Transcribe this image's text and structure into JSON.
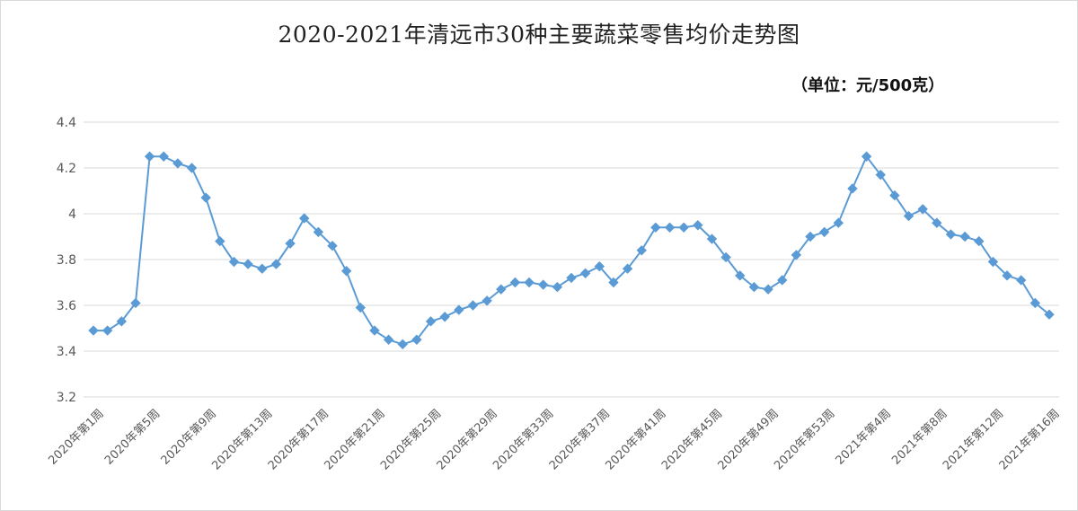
{
  "chart_data": {
    "type": "line",
    "title": "2020-2021年清远市30种主要蔬菜零售均价走势图",
    "unit_note": "（单位：元/500克）",
    "ylim": [
      3.2,
      4.4
    ],
    "yticks": [
      "3.2",
      "3.4",
      "3.6",
      "3.8",
      "4",
      "4.2",
      "4.4"
    ],
    "grid": true,
    "legend": "none",
    "color": "#5b9bd5",
    "categories": [
      "2020年第1周",
      "2020年第2周",
      "2020年第3周",
      "2020年第4周",
      "2020年第5周",
      "2020年第6周",
      "2020年第7周",
      "2020年第8周",
      "2020年第9周",
      "2020年第10周",
      "2020年第11周",
      "2020年第12周",
      "2020年第13周",
      "2020年第14周",
      "2020年第15周",
      "2020年第16周",
      "2020年第17周",
      "2020年第18周",
      "2020年第19周",
      "2020年第20周",
      "2020年第21周",
      "2020年第22周",
      "2020年第23周",
      "2020年第24周",
      "2020年第25周",
      "2020年第26周",
      "2020年第27周",
      "2020年第28周",
      "2020年第29周",
      "2020年第30周",
      "2020年第31周",
      "2020年第32周",
      "2020年第33周",
      "2020年第34周",
      "2020年第35周",
      "2020年第36周",
      "2020年第37周",
      "2020年第38周",
      "2020年第39周",
      "2020年第40周",
      "2020年第41周",
      "2020年第42周",
      "2020年第43周",
      "2020年第44周",
      "2020年第45周",
      "2020年第46周",
      "2020年第47周",
      "2020年第48周",
      "2020年第49周",
      "2020年第50周",
      "2020年第51周",
      "2020年第52周",
      "2020年第53周",
      "2021年第1周",
      "2021年第2周",
      "2021年第3周",
      "2021年第4周",
      "2021年第5周",
      "2021年第6周",
      "2021年第7周",
      "2021年第8周",
      "2021年第9周",
      "2021年第10周",
      "2021年第11周",
      "2021年第12周",
      "2021年第13周",
      "2021年第14周",
      "2021年第15周",
      "2021年第16周"
    ],
    "shown_labels": [
      "2020年第1周",
      "2020年第5周",
      "2020年第9周",
      "2020年第13周",
      "2020年第17周",
      "2020年第21周",
      "2020年第25周",
      "2020年第29周",
      "2020年第33周",
      "2020年第37周",
      "2020年第41周",
      "2020年第45周",
      "2020年第49周",
      "2020年第53周",
      "2021年第4周",
      "2021年第8周",
      "2021年第12周",
      "2021年第16周"
    ],
    "values": [
      3.49,
      3.49,
      3.53,
      3.61,
      4.25,
      4.25,
      4.22,
      4.2,
      4.07,
      3.88,
      3.79,
      3.78,
      3.76,
      3.78,
      3.87,
      3.98,
      3.92,
      3.86,
      3.75,
      3.59,
      3.49,
      3.45,
      3.43,
      3.45,
      3.53,
      3.55,
      3.58,
      3.6,
      3.62,
      3.67,
      3.7,
      3.7,
      3.69,
      3.68,
      3.72,
      3.74,
      3.77,
      3.7,
      3.76,
      3.84,
      3.94,
      3.94,
      3.94,
      3.95,
      3.89,
      3.81,
      3.73,
      3.68,
      3.67,
      3.71,
      3.82,
      3.9,
      3.92,
      3.96,
      4.11,
      4.25,
      4.17,
      4.08,
      3.99,
      4.02,
      3.96,
      3.91,
      3.9,
      3.88,
      3.79,
      3.73,
      3.71,
      3.61,
      3.56
    ]
  }
}
